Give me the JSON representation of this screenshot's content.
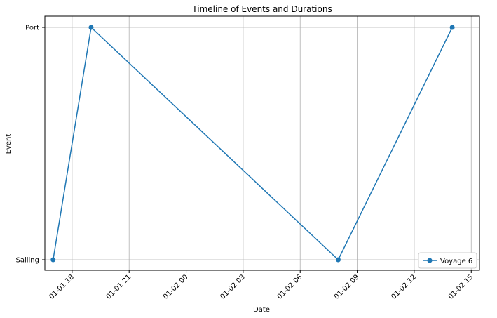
{
  "chart_data": {
    "type": "line",
    "title": "Timeline of Events and Durations",
    "xlabel": "Date",
    "ylabel": "Event",
    "x_axis_kind": "datetime",
    "xlim": [
      "2024-01-01T16:34",
      "2024-01-02T15:26"
    ],
    "x_ticks": [
      {
        "value": "2024-01-01T18:00",
        "label": "01-01 18"
      },
      {
        "value": "2024-01-01T21:00",
        "label": "01-01 21"
      },
      {
        "value": "2024-01-02T00:00",
        "label": "01-02 00"
      },
      {
        "value": "2024-01-02T03:00",
        "label": "01-02 03"
      },
      {
        "value": "2024-01-02T06:00",
        "label": "01-02 06"
      },
      {
        "value": "2024-01-02T09:00",
        "label": "01-02 09"
      },
      {
        "value": "2024-01-02T12:00",
        "label": "01-02 12"
      },
      {
        "value": "2024-01-02T15:00",
        "label": "01-02 15"
      }
    ],
    "categories_y": [
      "Sailing",
      "Port"
    ],
    "grid": true,
    "legend_position": "bottom-right",
    "series": [
      {
        "name": "Voyage 6",
        "color": "#1f77b4",
        "marker": "circle",
        "points": [
          {
            "x": "2024-01-01T17:00",
            "y": "Sailing"
          },
          {
            "x": "2024-01-01T19:00",
            "y": "Port"
          },
          {
            "x": "2024-01-02T08:00",
            "y": "Sailing"
          },
          {
            "x": "2024-01-02T14:00",
            "y": "Port"
          }
        ]
      }
    ]
  }
}
